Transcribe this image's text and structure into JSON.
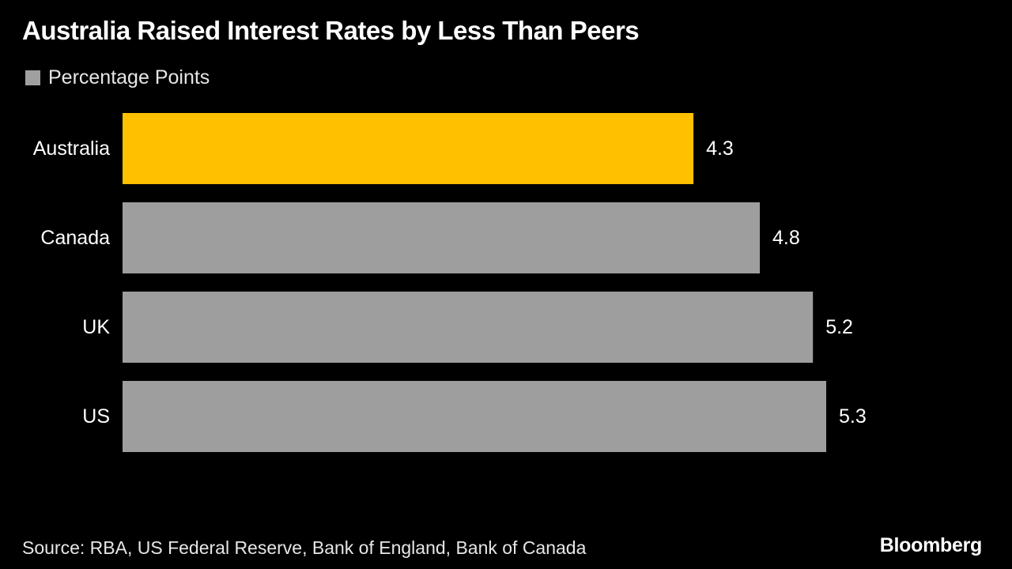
{
  "title": "Australia Raised Interest Rates by Less Than Peers",
  "legend": {
    "label": "Percentage Points",
    "color": "#a0a0a0"
  },
  "source": "Source: RBA, US Federal Reserve, Bank of England, Bank of Canada",
  "brand": "Bloomberg",
  "colors": {
    "background": "#000000",
    "highlight": "#ffc000",
    "bar": "#9e9e9e",
    "text": "#ffffff"
  },
  "chart_data": {
    "type": "bar",
    "orientation": "horizontal",
    "categories": [
      "Australia",
      "Canada",
      "UK",
      "US"
    ],
    "values": [
      4.3,
      4.8,
      5.2,
      5.3
    ],
    "value_labels": [
      "4.3",
      "4.8",
      "5.2",
      "5.3"
    ],
    "highlight_category": "Australia",
    "title": "Australia Raised Interest Rates by Less Than Peers",
    "legend": [
      "Percentage Points"
    ],
    "xlabel": "",
    "ylabel": "",
    "xlim": [
      0,
      5.3
    ],
    "grid": false,
    "legend_position": "top-left"
  }
}
